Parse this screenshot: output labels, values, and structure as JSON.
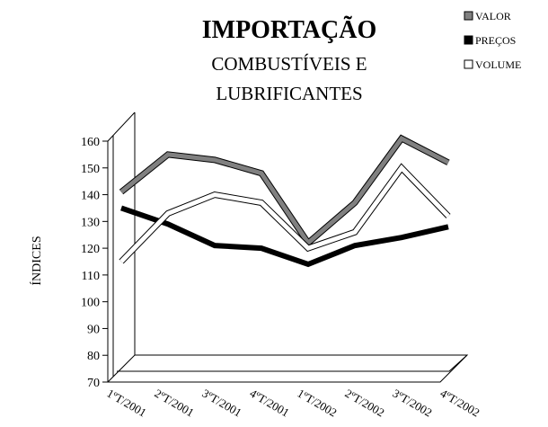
{
  "chart_data": {
    "type": "line",
    "title": "IMPORTAÇÃO",
    "subtitle": [
      "COMBUSTÍVEIS E",
      "LUBRIFICANTES"
    ],
    "y_label": "ÍNDICES",
    "categories": [
      "1ºT/2001",
      "2ºT/2001",
      "3ºT/2001",
      "4ºT/2001",
      "1ºT/2002",
      "2ºT/2002",
      "3ºT/2002",
      "4ºT/2002"
    ],
    "series": [
      {
        "name": "VALOR",
        "color": "#808080",
        "values": [
          141,
          155,
          153,
          148,
          122,
          137,
          161,
          152
        ]
      },
      {
        "name": "PREÇOS",
        "color": "#000000",
        "values": [
          135,
          129,
          121,
          120,
          114,
          121,
          124,
          128
        ]
      },
      {
        "name": "VOLUME",
        "color": "#ffffff",
        "values": [
          115,
          133,
          140,
          137,
          120,
          126,
          150,
          132
        ]
      }
    ],
    "ylim": [
      70,
      160
    ],
    "yticks": [
      70,
      80,
      90,
      100,
      110,
      120,
      130,
      140,
      150,
      160
    ],
    "legend": "top-right"
  }
}
